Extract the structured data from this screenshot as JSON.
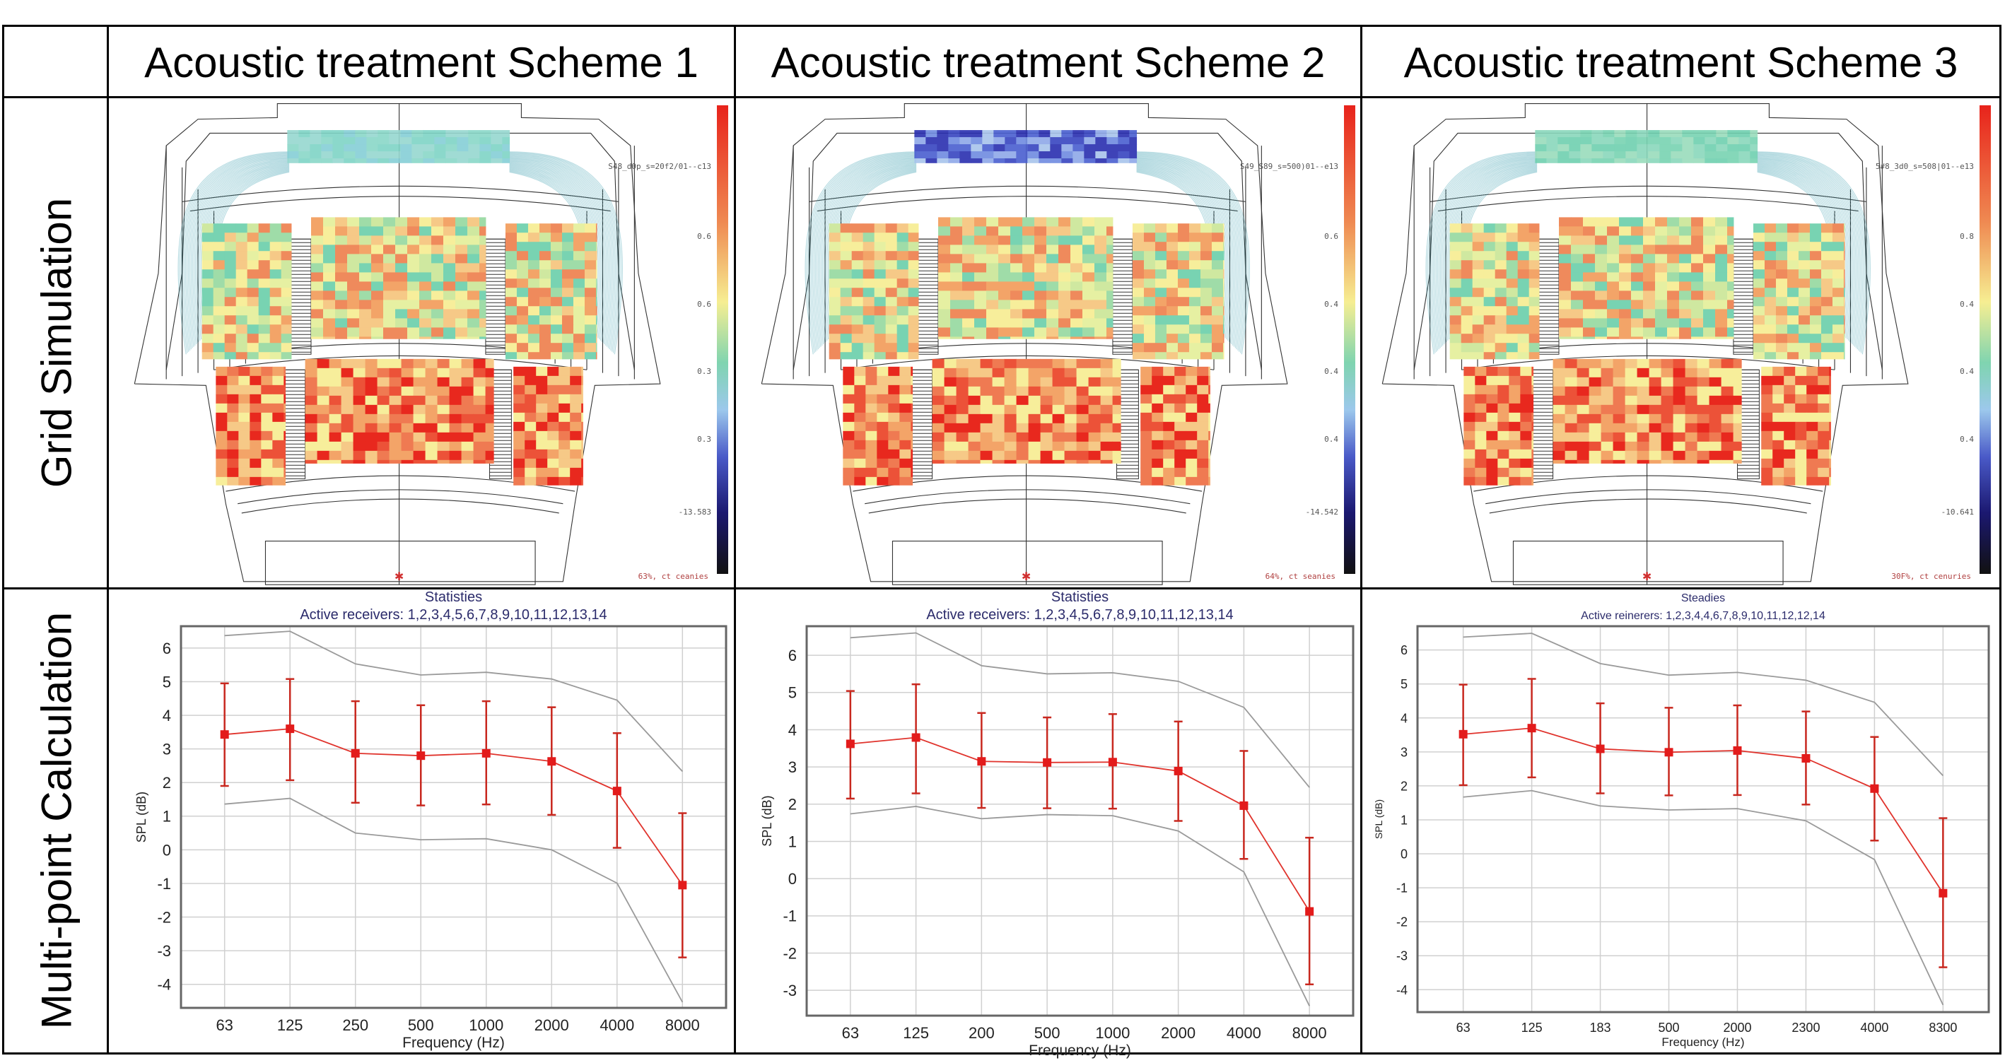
{
  "header": {
    "schemes": [
      "Acoustic treatment Scheme 1",
      "Acoustic treatment Scheme 2",
      "Acoustic treatment Scheme 3"
    ]
  },
  "rows": {
    "grid": "Grid Simulation",
    "multi": "Multi-point Calculation"
  },
  "simulations": [
    {
      "info_text": "S48_d0p_s=20f2/01--c13",
      "colorbar_labels": [
        "0.6",
        "0.6",
        "0.3",
        "0.3",
        "-13.583"
      ],
      "footer_text": "63%, ct ceanies",
      "stage_tone": "teal"
    },
    {
      "info_text": "S49_S89_s=500)01--e13",
      "colorbar_labels": [
        "0.6",
        "0.4",
        "0.4",
        "0.4",
        "-14.542"
      ],
      "footer_text": "64%, ct seanies",
      "stage_tone": "blue"
    },
    {
      "info_text": "5#8_3d0_s=508|01--e13",
      "colorbar_labels": [
        "0.8",
        "0.4",
        "0.4",
        "0.4",
        "-10.641"
      ],
      "footer_text": "30F%, ct cenuries",
      "stage_tone": "teal-green"
    }
  ],
  "colors": {
    "mean_line": "#e0332c",
    "error_bar": "#c8281f",
    "marker": "#e31b1b",
    "envelope": "#9a9a9a",
    "title_text": "#2b2b6b",
    "grid": "#d0d0d0"
  },
  "chart_data": [
    {
      "type": "line",
      "title": "Statisties",
      "subtitle": "Active receivers: 1,2,3,4,5,6,7,8,9,10,11,12,13,14",
      "xlabel": "Frequency (Hz)",
      "ylabel": "SPL (dB)",
      "categories": [
        "63",
        "125",
        "250",
        "500",
        "1000",
        "2000",
        "4000",
        "8000"
      ],
      "ylim": [
        -4.7,
        6.65
      ],
      "yticks": [
        -4,
        -3,
        -2,
        -1,
        0,
        1,
        2,
        3,
        4,
        5,
        6
      ],
      "grid": true,
      "series": [
        {
          "role": "mean",
          "values": [
            3.43,
            3.6,
            2.87,
            2.8,
            2.87,
            2.63,
            1.75,
            -1.05
          ],
          "err_high": [
            4.95,
            5.08,
            4.42,
            4.3,
            4.42,
            4.24,
            3.47,
            1.09
          ],
          "err_low": [
            1.9,
            2.07,
            1.4,
            1.32,
            1.35,
            1.04,
            0.06,
            -3.2
          ]
        },
        {
          "role": "upper",
          "values": [
            6.37,
            6.5,
            5.53,
            5.2,
            5.28,
            5.08,
            4.45,
            2.33
          ]
        },
        {
          "role": "lower",
          "values": [
            1.36,
            1.53,
            0.5,
            0.3,
            0.33,
            0.0,
            -0.99,
            -4.53
          ]
        }
      ]
    },
    {
      "type": "line",
      "title": "Statisties",
      "subtitle": "Active receivers: 1,2,3,4,5,6,7,8,9,10,11,12,13,14",
      "xlabel": "Frequency (Hz)",
      "ylabel": "SPL (dB)",
      "categories": [
        "63",
        "125",
        "200",
        "500",
        "1000",
        "2000",
        "4000",
        "8000"
      ],
      "ylim": [
        -3.68,
        6.78
      ],
      "yticks": [
        -3,
        -2,
        -1,
        0,
        1,
        2,
        3,
        4,
        5,
        6
      ],
      "grid": true,
      "series": [
        {
          "role": "mean",
          "values": [
            3.62,
            3.79,
            3.15,
            3.12,
            3.13,
            2.89,
            1.96,
            -0.88
          ],
          "err_high": [
            5.04,
            5.22,
            4.45,
            4.33,
            4.42,
            4.22,
            3.43,
            1.1
          ],
          "err_low": [
            2.15,
            2.29,
            1.9,
            1.89,
            1.88,
            1.55,
            0.53,
            -2.84
          ]
        },
        {
          "role": "upper",
          "values": [
            6.47,
            6.6,
            5.72,
            5.5,
            5.53,
            5.3,
            4.6,
            2.45
          ]
        },
        {
          "role": "lower",
          "values": [
            1.74,
            1.94,
            1.61,
            1.72,
            1.69,
            1.28,
            0.18,
            -3.42
          ]
        }
      ]
    },
    {
      "type": "line",
      "title": "Steadies",
      "subtitle": "Active reinerers: 1,2,3,4,4,6,7,8,9,10,11,12,12,14",
      "xlabel": "Frequency (Hz)",
      "ylabel": "SPL (dB)",
      "categories": [
        "63",
        "125",
        "183",
        "500",
        "2000",
        "2300",
        "4000",
        "8300"
      ],
      "ylim": [
        -4.66,
        6.7
      ],
      "yticks": [
        -4,
        -3,
        -2,
        -1,
        0,
        1,
        2,
        3,
        4,
        5,
        6
      ],
      "grid": true,
      "series": [
        {
          "role": "mean",
          "values": [
            3.52,
            3.7,
            3.09,
            2.99,
            3.04,
            2.81,
            1.92,
            -1.16
          ],
          "err_high": [
            4.98,
            5.15,
            4.43,
            4.3,
            4.37,
            4.19,
            3.44,
            1.05
          ],
          "err_low": [
            2.02,
            2.25,
            1.78,
            1.72,
            1.73,
            1.45,
            0.39,
            -3.34
          ]
        },
        {
          "role": "upper",
          "values": [
            6.38,
            6.49,
            5.6,
            5.26,
            5.34,
            5.11,
            4.46,
            2.3
          ]
        },
        {
          "role": "lower",
          "values": [
            1.67,
            1.86,
            1.41,
            1.29,
            1.33,
            0.97,
            -0.17,
            -4.45
          ]
        }
      ]
    }
  ]
}
